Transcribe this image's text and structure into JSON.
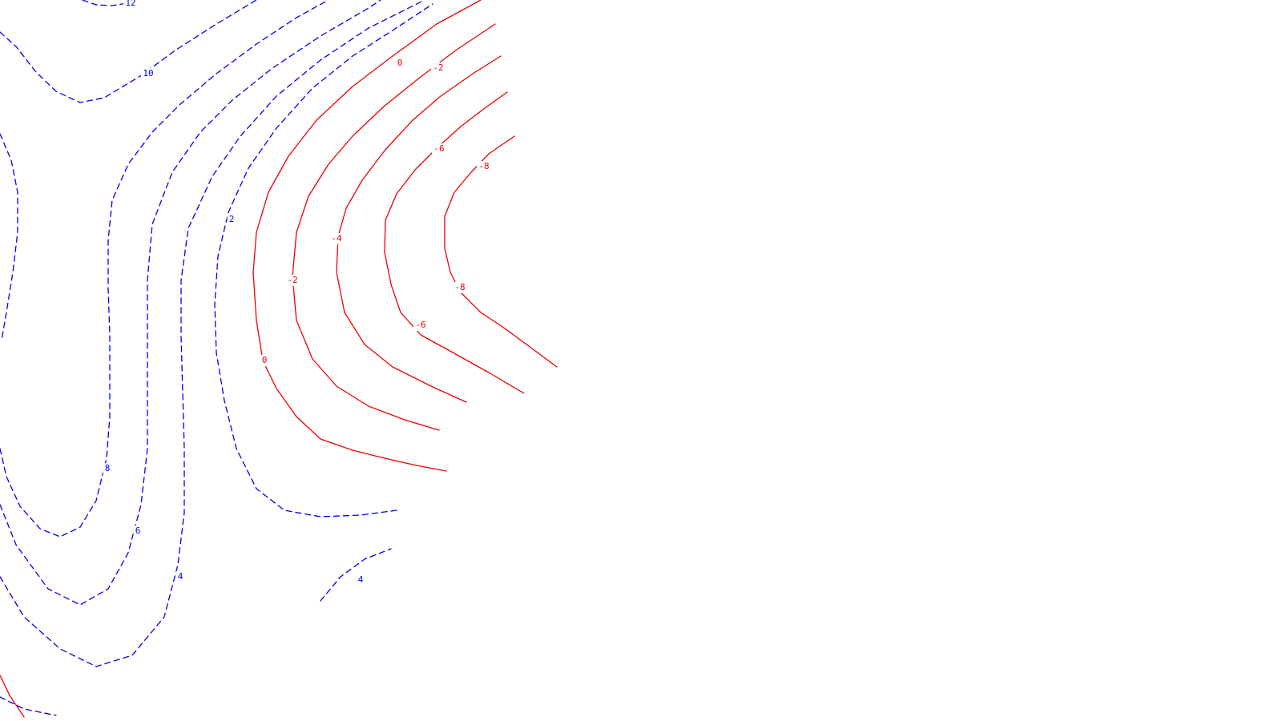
{
  "chart_data": {
    "type": "contour",
    "title": "",
    "xlabel": "",
    "ylabel": "",
    "colors": {
      "positive": "#0000ee",
      "negative": "#ee0000",
      "background": "#ffffff"
    },
    "styles": {
      "positive": "dashed",
      "negative": "solid"
    },
    "levels": [
      {
        "value": 12,
        "sign": "positive",
        "label": "12"
      },
      {
        "value": 10,
        "sign": "positive",
        "label": "10"
      },
      {
        "value": 8,
        "sign": "positive",
        "label": "8"
      },
      {
        "value": 6,
        "sign": "positive",
        "label": "6"
      },
      {
        "value": 4,
        "sign": "positive",
        "label": "4"
      },
      {
        "value": 2,
        "sign": "positive",
        "label": "2"
      },
      {
        "value": 0,
        "sign": "negative",
        "label": "0"
      },
      {
        "value": -2,
        "sign": "negative",
        "label": "-2"
      },
      {
        "value": -4,
        "sign": "negative",
        "label": "-4"
      },
      {
        "value": -6,
        "sign": "negative",
        "label": "-6"
      },
      {
        "value": -8,
        "sign": "negative",
        "label": "-8"
      }
    ],
    "grid": false,
    "legend": "none"
  }
}
